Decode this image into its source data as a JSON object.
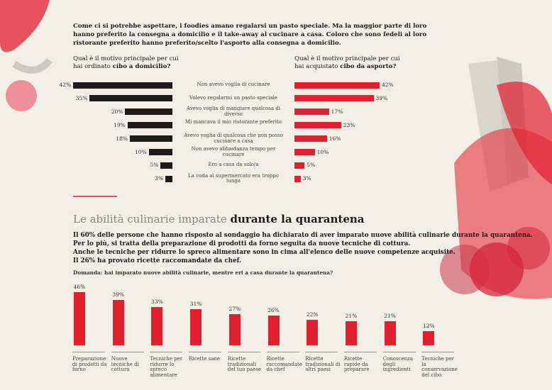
{
  "intro": "Come ci si potrebbe aspettare, i foodies amano regalarsi un pasto speciale. Ma la maggior parte di loro hanno preferito la consegna a domicilio e il take-away al cucinare a casa. Coloro che sono fedeli al loro ristorante preferito hanno preferito/scelto l'asporto alla consegna a domicilio.",
  "section": {
    "heading": [
      "Le abilità culinarie imparate ",
      "durante la quarantena"
    ],
    "text": [
      "Il 60% delle persone che hanno risposto al sondaggio ha dichiarato di aver imparato nuove abilità culinarie durante la quarantena.",
      "Per lo più, si tratta della preparazione di prodotti da forno seguita da nuove tecniche di cottura.",
      "Anche le tecniche per ridurre lo spreco alimentare sono in cima all'elenco delle nuove competenze acquisite.",
      "Il 26% ha provato ricette raccomandate da chef."
    ]
  },
  "chart_data": [
    {
      "type": "hbar-left",
      "title": [
        "Qual è il motivo principale per cui hai ordinato ",
        "cibo a domicilio?"
      ],
      "color": "#1c1a1a",
      "categories": [
        "Non avevo voglia di cucinare",
        "Volevo regalarmi un pasto speciale",
        "Avevo voglia di mangiare qualcosa di diverso",
        "Mi mancava il mio ristorante preferito",
        "Avevo voglia di qualcosa che non posso cucinare a casa",
        "Non avevo abbastanza tempo per cucinare",
        "Ero a casa da solo/a",
        "La coda al supermercato era troppo lunga"
      ],
      "values": [
        42,
        35,
        20,
        19,
        18,
        10,
        5,
        3
      ],
      "value_labels": [
        "42%",
        "35%",
        "20%",
        "19%",
        "18%",
        "10%",
        "5%",
        "3%"
      ]
    },
    {
      "type": "hbar-right",
      "title": [
        "Qual è il motivo principale per cui hai acquistato ",
        "cibo da asporto?"
      ],
      "color": "#e21f2f",
      "values": [
        42,
        39,
        17,
        23,
        16,
        10,
        5,
        3
      ],
      "value_labels": [
        "42%",
        "39%",
        "17%",
        "23%",
        "16%",
        "10%",
        "5%",
        "3%"
      ]
    },
    {
      "type": "bar",
      "title": "Domanda: hai imparato nuove abilità culinarie, mentre eri a casa durante la quarantena?",
      "color": "#e21f2f",
      "categories": [
        "Preparazione di prodotti da forno",
        "Nuove tecniche di cottura",
        "Tecniche per ridurre lo spreco alimentare",
        "Ricette sane",
        "Ricette tradizionali del tuo paese",
        "Ricette raccomandate da chef",
        "Ricette tradizionali di altri paesi",
        "Ricette rapide da preparare",
        "Conoscenza degli ingredienti",
        "Tecniche per la conservazione del cibo"
      ],
      "values": [
        46,
        39,
        33,
        31,
        27,
        26,
        22,
        21,
        21,
        12
      ],
      "value_labels": [
        "46%",
        "39%",
        "33%",
        "31%",
        "27%",
        "26%",
        "22%",
        "21%",
        "21%",
        "12%"
      ]
    }
  ]
}
